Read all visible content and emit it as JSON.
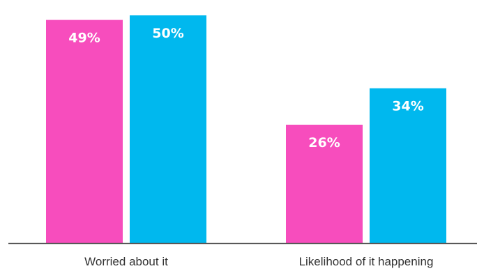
{
  "chart_data": {
    "type": "bar",
    "categories": [
      "Worried about it",
      "Likelihood of it happening"
    ],
    "series": [
      {
        "values": [
          49,
          26
        ],
        "color": "#f74dbd"
      },
      {
        "values": [
          50,
          34
        ],
        "color": "#00b8ee"
      }
    ],
    "data_labels": [
      [
        "49%",
        "26%"
      ],
      [
        "50%",
        "34%"
      ]
    ],
    "ylim": [
      0,
      52
    ],
    "grid": false,
    "legend": "none",
    "axis_color": "#555555"
  }
}
